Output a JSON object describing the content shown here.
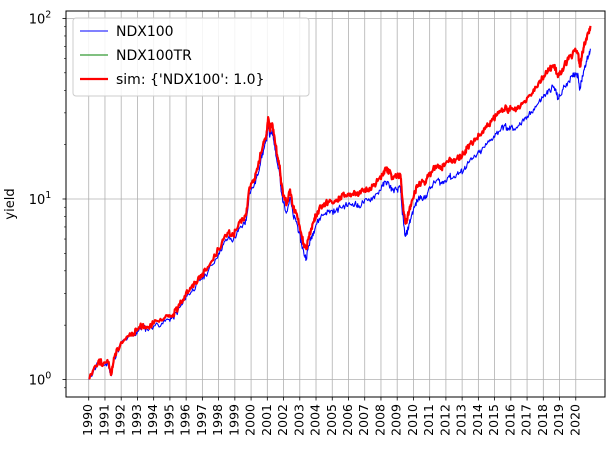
{
  "chart_data": {
    "type": "line",
    "title": "",
    "xlabel": "",
    "ylabel": "yield",
    "yscale": "log",
    "ylim": [
      0.8,
      110
    ],
    "xlim": [
      1988.6,
      2021.8
    ],
    "grid": "on",
    "legend_placement": "upper-left",
    "yticks": [
      {
        "value": 1,
        "label": "10^0"
      },
      {
        "value": 10,
        "label": "10^1"
      },
      {
        "value": 100,
        "label": "10^2"
      }
    ],
    "ytick_labels": {
      "base": "10",
      "exps": [
        "0",
        "1",
        "2"
      ]
    },
    "xticks": [
      1990,
      1991,
      1992,
      1993,
      1994,
      1995,
      1996,
      1997,
      1998,
      1999,
      2000,
      2001,
      2002,
      2003,
      2004,
      2005,
      2006,
      2007,
      2008,
      2009,
      2010,
      2011,
      2012,
      2013,
      2014,
      2015,
      2016,
      2017,
      2018,
      2019,
      2020
    ],
    "xtick_labels": [
      "1990",
      "1991",
      "1992",
      "1993",
      "1994",
      "1995",
      "1996",
      "1997",
      "1998",
      "1999",
      "2000",
      "2001",
      "2002",
      "2003",
      "2004",
      "2005",
      "2006",
      "2007",
      "2008",
      "2009",
      "2010",
      "2011",
      "2012",
      "2013",
      "2014",
      "2015",
      "2016",
      "2017",
      "2018",
      "2019",
      "2020"
    ],
    "series": [
      {
        "name": "NDX100",
        "color": "#0000ff",
        "points": [
          [
            1990.0,
            1.0
          ],
          [
            1990.3,
            1.12
          ],
          [
            1990.6,
            1.25
          ],
          [
            1990.9,
            1.2
          ],
          [
            1991.2,
            1.22
          ],
          [
            1991.4,
            1.05
          ],
          [
            1991.55,
            1.3
          ],
          [
            1991.8,
            1.45
          ],
          [
            1992.0,
            1.58
          ],
          [
            1992.4,
            1.7
          ],
          [
            1992.8,
            1.75
          ],
          [
            1993.0,
            1.85
          ],
          [
            1993.3,
            1.95
          ],
          [
            1993.6,
            1.9
          ],
          [
            1994.0,
            1.98
          ],
          [
            1994.5,
            2.05
          ],
          [
            1994.9,
            2.15
          ],
          [
            1995.2,
            2.2
          ],
          [
            1995.5,
            2.4
          ],
          [
            1995.8,
            2.65
          ],
          [
            1996.0,
            2.9
          ],
          [
            1996.3,
            3.05
          ],
          [
            1996.6,
            3.3
          ],
          [
            1996.9,
            3.6
          ],
          [
            1997.2,
            3.8
          ],
          [
            1997.6,
            4.3
          ],
          [
            1998.0,
            5.0
          ],
          [
            1998.3,
            5.6
          ],
          [
            1998.6,
            6.1
          ],
          [
            1998.9,
            5.9
          ],
          [
            1999.2,
            6.6
          ],
          [
            1999.5,
            7.2
          ],
          [
            1999.7,
            7.6
          ],
          [
            1999.9,
            10.8
          ],
          [
            2000.2,
            12.0
          ],
          [
            2000.4,
            13.5
          ],
          [
            2000.6,
            16.5
          ],
          [
            2000.8,
            19.0
          ],
          [
            2000.95,
            21.0
          ],
          [
            2001.05,
            26.0
          ],
          [
            2001.15,
            22.0
          ],
          [
            2001.3,
            24.0
          ],
          [
            2001.45,
            20.0
          ],
          [
            2001.6,
            16.0
          ],
          [
            2001.75,
            14.0
          ],
          [
            2001.85,
            11.0
          ],
          [
            2002.0,
            9.5
          ],
          [
            2002.2,
            8.5
          ],
          [
            2002.4,
            10.2
          ],
          [
            2002.6,
            8.0
          ],
          [
            2002.8,
            7.5
          ],
          [
            2002.95,
            6.5
          ],
          [
            2003.1,
            5.7
          ],
          [
            2003.25,
            5.0
          ],
          [
            2003.4,
            4.7
          ],
          [
            2003.55,
            5.5
          ],
          [
            2003.7,
            6.1
          ],
          [
            2003.85,
            6.6
          ],
          [
            2004.0,
            7.2
          ],
          [
            2004.3,
            8.0
          ],
          [
            2004.6,
            8.4
          ],
          [
            2004.9,
            8.6
          ],
          [
            2005.2,
            8.5
          ],
          [
            2005.5,
            9.0
          ],
          [
            2005.8,
            9.2
          ],
          [
            2006.1,
            9.3
          ],
          [
            2006.4,
            9.5
          ],
          [
            2006.6,
            9.0
          ],
          [
            2006.9,
            9.6
          ],
          [
            2007.2,
            9.8
          ],
          [
            2007.5,
            10.2
          ],
          [
            2007.8,
            10.8
          ],
          [
            2008.1,
            11.8
          ],
          [
            2008.3,
            12.5
          ],
          [
            2008.5,
            12.0
          ],
          [
            2008.7,
            11.2
          ],
          [
            2009.0,
            11.3
          ],
          [
            2009.2,
            11.5
          ],
          [
            2009.3,
            8.8
          ],
          [
            2009.4,
            7.2
          ],
          [
            2009.5,
            6.2
          ],
          [
            2009.6,
            6.5
          ],
          [
            2009.75,
            7.3
          ],
          [
            2009.9,
            8.2
          ],
          [
            2010.1,
            9.2
          ],
          [
            2010.3,
            10.0
          ],
          [
            2010.5,
            10.3
          ],
          [
            2010.7,
            10.0
          ],
          [
            2010.9,
            11.0
          ],
          [
            2011.2,
            12.0
          ],
          [
            2011.5,
            12.8
          ],
          [
            2011.7,
            12.2
          ],
          [
            2011.9,
            12.5
          ],
          [
            2012.2,
            13.5
          ],
          [
            2012.4,
            13.0
          ],
          [
            2012.7,
            13.8
          ],
          [
            2012.9,
            14.0
          ],
          [
            2013.1,
            14.5
          ],
          [
            2013.3,
            15.5
          ],
          [
            2013.6,
            16.5
          ],
          [
            2013.9,
            17.5
          ],
          [
            2014.2,
            18.5
          ],
          [
            2014.5,
            20.0
          ],
          [
            2014.8,
            21.5
          ],
          [
            2015.1,
            23.0
          ],
          [
            2015.4,
            24.5
          ],
          [
            2015.65,
            25.5
          ],
          [
            2015.8,
            24.0
          ],
          [
            2016.0,
            25.0
          ],
          [
            2016.2,
            24.5
          ],
          [
            2016.5,
            25.5
          ],
          [
            2016.8,
            27.0
          ],
          [
            2017.1,
            29.0
          ],
          [
            2017.4,
            31.5
          ],
          [
            2017.7,
            34.0
          ],
          [
            2017.95,
            36.5
          ],
          [
            2018.2,
            38.5
          ],
          [
            2018.4,
            40.0
          ],
          [
            2018.6,
            42.0
          ],
          [
            2018.75,
            40.0
          ],
          [
            2018.9,
            36.0
          ],
          [
            2019.05,
            37.5
          ],
          [
            2019.3,
            42.0
          ],
          [
            2019.55,
            45.0
          ],
          [
            2019.8,
            47.5
          ],
          [
            2020.0,
            50.0
          ],
          [
            2020.15,
            48.0
          ],
          [
            2020.25,
            40.5
          ],
          [
            2020.35,
            45.0
          ],
          [
            2020.5,
            52.0
          ],
          [
            2020.65,
            58.0
          ],
          [
            2020.8,
            62.0
          ],
          [
            2020.9,
            68.0
          ]
        ]
      },
      {
        "name": "NDX100TR",
        "color": "#008000",
        "points": []
      },
      {
        "name": "sim: {'NDX100': 1.0}",
        "color": "#ff0000",
        "points": [
          [
            1990.0,
            1.02
          ],
          [
            1990.3,
            1.14
          ],
          [
            1990.6,
            1.27
          ],
          [
            1990.9,
            1.22
          ],
          [
            1991.2,
            1.24
          ],
          [
            1991.4,
            1.07
          ],
          [
            1991.55,
            1.32
          ],
          [
            1991.8,
            1.48
          ],
          [
            1992.0,
            1.61
          ],
          [
            1992.4,
            1.74
          ],
          [
            1992.8,
            1.8
          ],
          [
            1993.0,
            1.9
          ],
          [
            1993.3,
            2.0
          ],
          [
            1993.6,
            1.96
          ],
          [
            1994.0,
            2.04
          ],
          [
            1994.5,
            2.12
          ],
          [
            1994.9,
            2.23
          ],
          [
            1995.2,
            2.29
          ],
          [
            1995.5,
            2.5
          ],
          [
            1995.8,
            2.77
          ],
          [
            1996.0,
            3.04
          ],
          [
            1996.3,
            3.2
          ],
          [
            1996.6,
            3.47
          ],
          [
            1996.9,
            3.79
          ],
          [
            1997.2,
            4.01
          ],
          [
            1997.6,
            4.55
          ],
          [
            1998.0,
            5.3
          ],
          [
            1998.3,
            5.95
          ],
          [
            1998.6,
            6.5
          ],
          [
            1998.9,
            6.3
          ],
          [
            1999.2,
            7.06
          ],
          [
            1999.5,
            7.72
          ],
          [
            1999.7,
            8.16
          ],
          [
            1999.9,
            11.6
          ],
          [
            2000.2,
            12.9
          ],
          [
            2000.4,
            14.6
          ],
          [
            2000.6,
            17.9
          ],
          [
            2000.8,
            20.7
          ],
          [
            2000.95,
            22.9
          ],
          [
            2001.05,
            28.4
          ],
          [
            2001.15,
            24.1
          ],
          [
            2001.3,
            26.3
          ],
          [
            2001.45,
            21.9
          ],
          [
            2001.6,
            17.6
          ],
          [
            2001.75,
            15.4
          ],
          [
            2001.85,
            12.1
          ],
          [
            2002.0,
            10.5
          ],
          [
            2002.2,
            9.4
          ],
          [
            2002.4,
            11.3
          ],
          [
            2002.6,
            8.88
          ],
          [
            2002.8,
            8.34
          ],
          [
            2002.95,
            7.24
          ],
          [
            2003.1,
            6.36
          ],
          [
            2003.25,
            5.59
          ],
          [
            2003.4,
            5.27
          ],
          [
            2003.55,
            6.18
          ],
          [
            2003.7,
            6.86
          ],
          [
            2003.85,
            7.44
          ],
          [
            2004.0,
            8.13
          ],
          [
            2004.3,
            9.06
          ],
          [
            2004.6,
            9.54
          ],
          [
            2004.9,
            9.79
          ],
          [
            2005.2,
            9.7
          ],
          [
            2005.5,
            10.3
          ],
          [
            2005.8,
            10.5
          ],
          [
            2006.1,
            10.7
          ],
          [
            2006.4,
            10.9
          ],
          [
            2006.6,
            10.4
          ],
          [
            2006.9,
            11.1
          ],
          [
            2007.2,
            11.3
          ],
          [
            2007.5,
            11.8
          ],
          [
            2007.8,
            12.6
          ],
          [
            2008.1,
            13.8
          ],
          [
            2008.3,
            14.6
          ],
          [
            2008.5,
            14.1
          ],
          [
            2008.7,
            13.2
          ],
          [
            2009.0,
            13.3
          ],
          [
            2009.2,
            13.6
          ],
          [
            2009.3,
            10.4
          ],
          [
            2009.4,
            8.52
          ],
          [
            2009.5,
            7.35
          ],
          [
            2009.6,
            7.72
          ],
          [
            2009.75,
            8.69
          ],
          [
            2009.9,
            9.78
          ],
          [
            2010.1,
            11.0
          ],
          [
            2010.3,
            12.0
          ],
          [
            2010.5,
            12.4
          ],
          [
            2010.7,
            12.0
          ],
          [
            2010.9,
            13.3
          ],
          [
            2011.2,
            14.5
          ],
          [
            2011.5,
            15.5
          ],
          [
            2011.7,
            14.8
          ],
          [
            2011.9,
            15.2
          ],
          [
            2012.2,
            16.5
          ],
          [
            2012.4,
            15.9
          ],
          [
            2012.7,
            16.9
          ],
          [
            2012.9,
            17.2
          ],
          [
            2013.1,
            17.8
          ],
          [
            2013.3,
            19.1
          ],
          [
            2013.6,
            20.4
          ],
          [
            2013.9,
            21.7
          ],
          [
            2014.2,
            23.0
          ],
          [
            2014.5,
            25.0
          ],
          [
            2014.8,
            26.9
          ],
          [
            2015.1,
            28.9
          ],
          [
            2015.4,
            30.9
          ],
          [
            2015.65,
            32.2
          ],
          [
            2015.8,
            30.4
          ],
          [
            2016.0,
            31.7
          ],
          [
            2016.2,
            31.1
          ],
          [
            2016.5,
            32.5
          ],
          [
            2016.8,
            34.5
          ],
          [
            2017.1,
            37.2
          ],
          [
            2017.4,
            40.5
          ],
          [
            2017.7,
            43.9
          ],
          [
            2017.95,
            47.2
          ],
          [
            2018.2,
            50.0
          ],
          [
            2018.4,
            52.1
          ],
          [
            2018.6,
            54.9
          ],
          [
            2018.75,
            52.4
          ],
          [
            2018.9,
            47.3
          ],
          [
            2019.05,
            49.4
          ],
          [
            2019.3,
            55.4
          ],
          [
            2019.55,
            59.5
          ],
          [
            2019.8,
            63.0
          ],
          [
            2020.0,
            66.5
          ],
          [
            2020.15,
            63.9
          ],
          [
            2020.25,
            54.0
          ],
          [
            2020.35,
            60.1
          ],
          [
            2020.5,
            69.6
          ],
          [
            2020.65,
            77.8
          ],
          [
            2020.8,
            83.3
          ],
          [
            2020.9,
            91.0
          ]
        ]
      }
    ]
  }
}
